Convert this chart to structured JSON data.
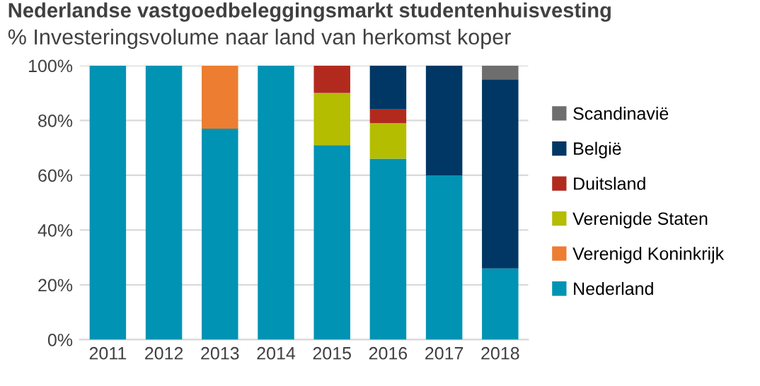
{
  "chart_data": {
    "type": "bar",
    "stacked": true,
    "title": "Nederlandse vastgoedbeleggingsmarkt studentenhuisvesting",
    "subtitle": "% Investeringsvolume naar land van herkomst koper",
    "categories": [
      "2011",
      "2012",
      "2013",
      "2014",
      "2015",
      "2016",
      "2017",
      "2018"
    ],
    "series": [
      {
        "name": "Nederland",
        "color": "#0093b4",
        "values": [
          100,
          100,
          77,
          100,
          71,
          66,
          60,
          26
        ]
      },
      {
        "name": "Verenigd Koninkrijk",
        "color": "#ed7d31",
        "values": [
          0,
          0,
          23,
          0,
          0,
          0,
          0,
          0
        ]
      },
      {
        "name": "Verenigde Staten",
        "color": "#b4bd00",
        "values": [
          0,
          0,
          0,
          0,
          19,
          13,
          0,
          0
        ]
      },
      {
        "name": "Duitsland",
        "color": "#b22a1e",
        "values": [
          0,
          0,
          0,
          0,
          10,
          5,
          0,
          0
        ]
      },
      {
        "name": "België",
        "color": "#003764",
        "values": [
          0,
          0,
          0,
          0,
          0,
          16,
          40,
          69
        ]
      },
      {
        "name": "Scandinavië",
        "color": "#6e6e6e",
        "values": [
          0,
          0,
          0,
          0,
          0,
          0,
          0,
          5
        ]
      }
    ],
    "ylim": [
      0,
      100
    ],
    "yticks": [
      {
        "value": 0,
        "label": "0%"
      },
      {
        "value": 20,
        "label": "20%"
      },
      {
        "value": 40,
        "label": "40%"
      },
      {
        "value": 60,
        "label": "60%"
      },
      {
        "value": 80,
        "label": "80%"
      },
      {
        "value": 100,
        "label": "100%"
      }
    ],
    "grid": "y",
    "legend": "right"
  }
}
